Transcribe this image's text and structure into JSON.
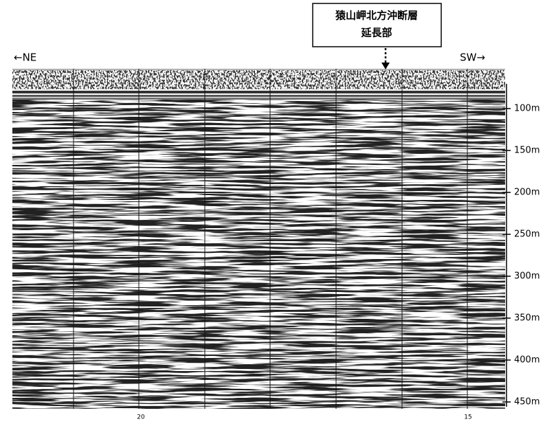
{
  "annotation": {
    "lines": [
      "猿山岬北方沖断層",
      "延長部"
    ]
  },
  "direction": {
    "left": "←NE",
    "right": "SW→"
  },
  "depth_axis": {
    "ticks": [
      {
        "value": 100,
        "label": "100m"
      },
      {
        "value": 150,
        "label": "150m"
      },
      {
        "value": 200,
        "label": "200m"
      },
      {
        "value": 250,
        "label": "250m"
      },
      {
        "value": 300,
        "label": "300m"
      },
      {
        "value": 350,
        "label": "350m"
      },
      {
        "value": 400,
        "label": "400m"
      },
      {
        "value": 450,
        "label": "450m"
      }
    ]
  },
  "bottom_labels": [
    "20",
    "15"
  ]
}
